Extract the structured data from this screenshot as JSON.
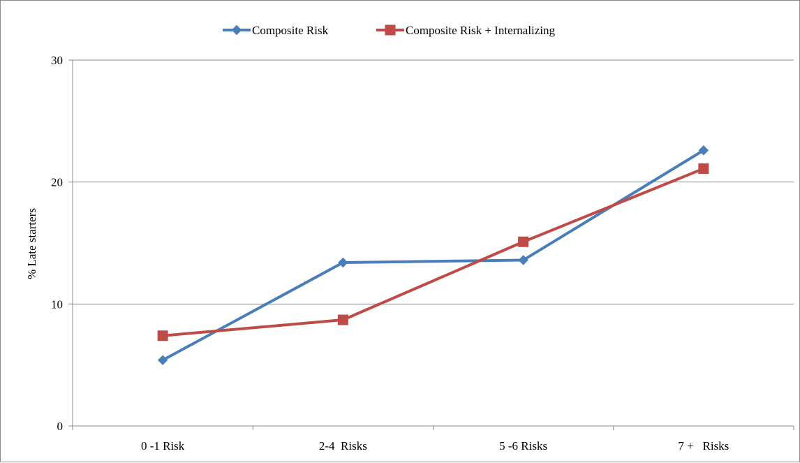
{
  "chart_data": {
    "type": "line",
    "categories": [
      "0 -1 Risk",
      "2-4  Risks",
      "5 -6 Risks",
      "7 +   Risks"
    ],
    "series": [
      {
        "name": "Composite Risk",
        "values": [
          5.4,
          13.4,
          13.6,
          22.6
        ],
        "color": "#4a7ebb",
        "marker": "diamond"
      },
      {
        "name": "Composite Risk + Internalizing",
        "values": [
          7.4,
          8.7,
          15.1,
          21.1
        ],
        "color": "#be4b48",
        "marker": "square"
      }
    ],
    "ylabel": "% Late starters",
    "xlabel": "",
    "ylim": [
      0,
      30
    ],
    "yticks": [
      "0",
      "10",
      "20",
      "30"
    ],
    "grid": "horizontal",
    "legend_position": "top"
  }
}
